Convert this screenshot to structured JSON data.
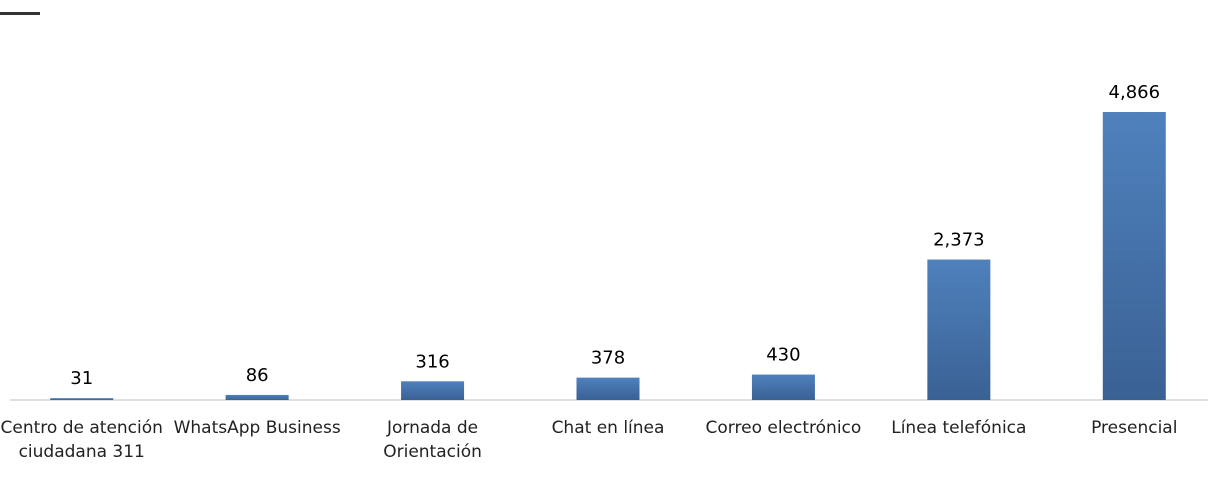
{
  "chart_data": {
    "type": "bar",
    "categories": [
      "Centro de atención ciudadana 311",
      "WhatsApp Business",
      "Jornada de Orientación",
      "Chat en línea",
      "Correo electrónico",
      "Línea telefónica",
      "Presencial"
    ],
    "values": [
      31,
      86,
      316,
      378,
      430,
      2373,
      4866
    ],
    "value_labels": [
      "31",
      "86",
      "316",
      "378",
      "430",
      "2,373",
      "4,866"
    ],
    "color": "#4f81bd"
  }
}
